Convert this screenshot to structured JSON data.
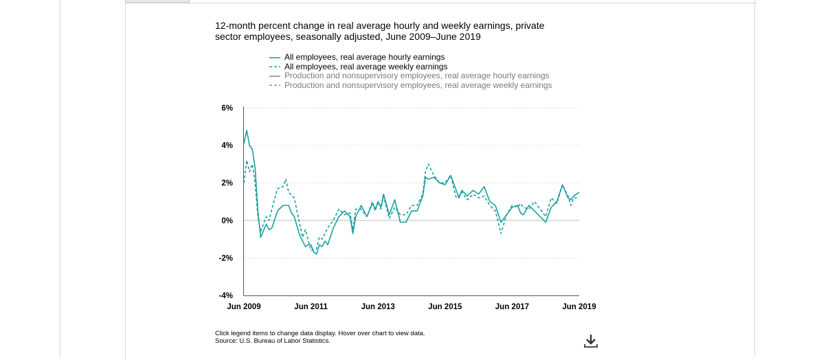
{
  "chart_data": {
    "type": "line",
    "title": "12-month percent change in real average hourly and weekly earnings, private sector employees, seasonally adjusted, June 2009–June 2019",
    "xlabel": "",
    "ylabel": "",
    "x_tick_labels": [
      "Jun 2009",
      "Jun 2011",
      "Jun 2013",
      "Jun 2015",
      "Jun 2017",
      "Jun 2019"
    ],
    "y_tick_labels": [
      "6%",
      "4%",
      "2%",
      "0%",
      "-2%",
      "-4%"
    ],
    "x_range": [
      "Jun 2009",
      "Jun 2019"
    ],
    "ylim": [
      -4,
      6
    ],
    "grid": "horizontal dotted",
    "legend_position": "top",
    "series": [
      {
        "name": "All employees, real average hourly earnings",
        "color": "#1a9e9e",
        "dash": "solid",
        "visible": true,
        "anchors": [
          [
            "Jun 2009",
            4.1
          ],
          [
            "Jul 2009",
            4.8
          ],
          [
            "Aug 2009",
            4.0
          ],
          [
            "Sep 2009",
            3.8
          ],
          [
            "Oct 2009",
            2.8
          ],
          [
            "Nov 2009",
            0.5
          ],
          [
            "Dec 2009",
            -0.9
          ],
          [
            "Feb 2010",
            -0.2
          ],
          [
            "Mar 2010",
            -0.5
          ],
          [
            "Apr 2010",
            -0.4
          ],
          [
            "Jun 2010",
            0.5
          ],
          [
            "Aug 2010",
            0.8
          ],
          [
            "Oct 2010",
            0.8
          ],
          [
            "Nov 2010",
            0.4
          ],
          [
            "Dec 2010",
            0.2
          ],
          [
            "Feb 2011",
            -0.8
          ],
          [
            "Apr 2011",
            -1.4
          ],
          [
            "May 2011",
            -1.3
          ],
          [
            "Jun 2011",
            -1.3
          ],
          [
            "Jul 2011",
            -1.7
          ],
          [
            "Aug 2011",
            -1.8
          ],
          [
            "Sep 2011",
            -1.3
          ],
          [
            "Oct 2011",
            -1.4
          ],
          [
            "Nov 2011",
            -1.1
          ],
          [
            "Dec 2011",
            -1.3
          ],
          [
            "Feb 2012",
            -0.4
          ],
          [
            "Apr 2012",
            0.2
          ],
          [
            "Jun 2012",
            0.5
          ],
          [
            "Aug 2012",
            0.2
          ],
          [
            "Sep 2012",
            -0.7
          ],
          [
            "Oct 2012",
            0.2
          ],
          [
            "Dec 2012",
            0.8
          ],
          [
            "Feb 2013",
            0.2
          ],
          [
            "Apr 2013",
            0.9
          ],
          [
            "May 2013",
            0.6
          ],
          [
            "Jun 2013",
            1.0
          ],
          [
            "Jul 2013",
            0.7
          ],
          [
            "Aug 2013",
            1.4
          ],
          [
            "Oct 2013",
            0.3
          ],
          [
            "Dec 2013",
            1.1
          ],
          [
            "Feb 2014",
            -0.1
          ],
          [
            "Apr 2014",
            -0.1
          ],
          [
            "Jun 2014",
            0.5
          ],
          [
            "Aug 2014",
            0.5
          ],
          [
            "Oct 2014",
            1.3
          ],
          [
            "Nov 2014",
            2.3
          ],
          [
            "Dec 2014",
            2.2
          ],
          [
            "Feb 2015",
            2.3
          ],
          [
            "Apr 2015",
            2.0
          ],
          [
            "Jun 2015",
            1.9
          ],
          [
            "Aug 2015",
            2.4
          ],
          [
            "Oct 2015",
            1.6
          ],
          [
            "Nov 2015",
            1.2
          ],
          [
            "Dec 2015",
            1.6
          ],
          [
            "Feb 2016",
            1.3
          ],
          [
            "Apr 2016",
            1.6
          ],
          [
            "Jun 2016",
            1.4
          ],
          [
            "Aug 2016",
            1.8
          ],
          [
            "Oct 2016",
            1.0
          ],
          [
            "Dec 2016",
            0.8
          ],
          [
            "Feb 2017",
            -0.1
          ],
          [
            "Apr 2017",
            0.3
          ],
          [
            "Jun 2017",
            0.7
          ],
          [
            "Aug 2017",
            0.8
          ],
          [
            "Sep 2017",
            0.4
          ],
          [
            "Oct 2017",
            0.3
          ],
          [
            "Dec 2017",
            0.8
          ],
          [
            "Feb 2018",
            0.5
          ],
          [
            "Apr 2018",
            0.2
          ],
          [
            "Jun 2018",
            -0.1
          ],
          [
            "Aug 2018",
            0.7
          ],
          [
            "Oct 2018",
            1.0
          ],
          [
            "Dec 2018",
            1.9
          ],
          [
            "Feb 2019",
            1.2
          ],
          [
            "Mar 2019",
            1.1
          ],
          [
            "Apr 2019",
            1.3
          ],
          [
            "Jun 2019",
            1.5
          ]
        ]
      },
      {
        "name": "All employees, real average weekly earnings",
        "color": "#1a9e9e",
        "dash": "dashed",
        "visible": true,
        "anchors": [
          [
            "Jun 2009",
            2.0
          ],
          [
            "Jul 2009",
            3.2
          ],
          [
            "Aug 2009",
            2.6
          ],
          [
            "Sep 2009",
            3.0
          ],
          [
            "Oct 2009",
            2.0
          ],
          [
            "Nov 2009",
            0.2
          ],
          [
            "Dec 2009",
            -0.6
          ],
          [
            "Feb 2010",
            0.2
          ],
          [
            "Mar 2010",
            0.0
          ],
          [
            "Apr 2010",
            0.6
          ],
          [
            "Jun 2010",
            1.7
          ],
          [
            "Aug 2010",
            1.8
          ],
          [
            "Sep 2010",
            2.2
          ],
          [
            "Oct 2010",
            1.5
          ],
          [
            "Dec 2010",
            1.2
          ],
          [
            "Jan 2011",
            0.5
          ],
          [
            "Mar 2011",
            -0.9
          ],
          [
            "Apr 2011",
            -0.5
          ],
          [
            "Jun 2011",
            -1.6
          ],
          [
            "Aug 2011",
            -1.5
          ],
          [
            "Sep 2011",
            -0.9
          ],
          [
            "Oct 2011",
            -1.0
          ],
          [
            "Dec 2011",
            -0.4
          ],
          [
            "Feb 2012",
            0.0
          ],
          [
            "Apr 2012",
            0.6
          ],
          [
            "Jun 2012",
            0.3
          ],
          [
            "Aug 2012",
            0.4
          ],
          [
            "Sep 2012",
            -0.5
          ],
          [
            "Oct 2012",
            0.6
          ],
          [
            "Dec 2012",
            0.6
          ],
          [
            "Feb 2013",
            0.2
          ],
          [
            "Apr 2013",
            1.0
          ],
          [
            "May 2013",
            0.5
          ],
          [
            "Jun 2013",
            1.0
          ],
          [
            "Jul 2013",
            0.6
          ],
          [
            "Aug 2013",
            1.3
          ],
          [
            "Oct 2013",
            0.1
          ],
          [
            "Dec 2013",
            0.7
          ],
          [
            "Feb 2014",
            0.3
          ],
          [
            "Apr 2014",
            0.3
          ],
          [
            "Jun 2014",
            0.8
          ],
          [
            "Aug 2014",
            0.8
          ],
          [
            "Oct 2014",
            1.4
          ],
          [
            "Nov 2014",
            2.6
          ],
          [
            "Dec 2014",
            3.0
          ],
          [
            "Feb 2015",
            2.4
          ],
          [
            "Apr 2015",
            2.0
          ],
          [
            "Jun 2015",
            2.0
          ],
          [
            "Aug 2015",
            2.4
          ],
          [
            "Oct 2015",
            1.2
          ],
          [
            "Nov 2015",
            1.3
          ],
          [
            "Dec 2015",
            1.5
          ],
          [
            "Feb 2016",
            1.1
          ],
          [
            "Apr 2016",
            1.4
          ],
          [
            "Jun 2016",
            1.2
          ],
          [
            "Aug 2016",
            1.3
          ],
          [
            "Oct 2016",
            0.8
          ],
          [
            "Dec 2016",
            0.5
          ],
          [
            "Feb 2017",
            -0.7
          ],
          [
            "Apr 2017",
            0.3
          ],
          [
            "Jun 2017",
            0.8
          ],
          [
            "Aug 2017",
            0.7
          ],
          [
            "Sep 2017",
            0.9
          ],
          [
            "Oct 2017",
            0.7
          ],
          [
            "Dec 2017",
            0.6
          ],
          [
            "Feb 2018",
            1.0
          ],
          [
            "Apr 2018",
            0.6
          ],
          [
            "Jun 2018",
            0.2
          ],
          [
            "Aug 2018",
            1.2
          ],
          [
            "Oct 2018",
            0.9
          ],
          [
            "Dec 2018",
            1.9
          ],
          [
            "Feb 2019",
            1.3
          ],
          [
            "Mar 2019",
            0.8
          ],
          [
            "Apr 2019",
            1.2
          ],
          [
            "Jun 2019",
            1.2
          ]
        ]
      },
      {
        "name": "Production and nonsupervisory employees, real average hourly earnings",
        "color": "#8c8c8c",
        "dash": "solid",
        "visible": false,
        "anchors": []
      },
      {
        "name": "Production and nonsupervisory employees, real average weekly earnings",
        "color": "#8c8c8c",
        "dash": "dashed",
        "visible": false,
        "anchors": []
      }
    ],
    "notes": [
      "Click legend items to change data display. Hover over chart to view data.",
      "Source: U.S. Bureau of Labor Statistics."
    ]
  },
  "download_icon": "download-icon"
}
